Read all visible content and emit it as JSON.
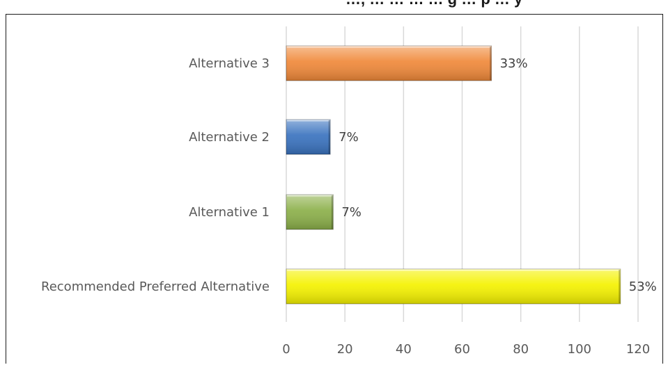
{
  "title_fragment": "…, … … … … g … p … y",
  "chart_data": {
    "type": "bar",
    "orientation": "horizontal",
    "categories": [
      "Alternative 3",
      "Alternative 2",
      "Alternative 1",
      "Recommended Preferred Alternative"
    ],
    "values": [
      70,
      15,
      16,
      114
    ],
    "data_labels": [
      "33%",
      "7%",
      "7%",
      "53%"
    ],
    "colors": [
      "#f0893a",
      "#3a73bf",
      "#8cb04a",
      "#f5f200"
    ],
    "xlim": [
      0,
      120
    ],
    "xticks": [
      0,
      20,
      40,
      60,
      80,
      100,
      120
    ],
    "grid": true,
    "legend": "none"
  }
}
